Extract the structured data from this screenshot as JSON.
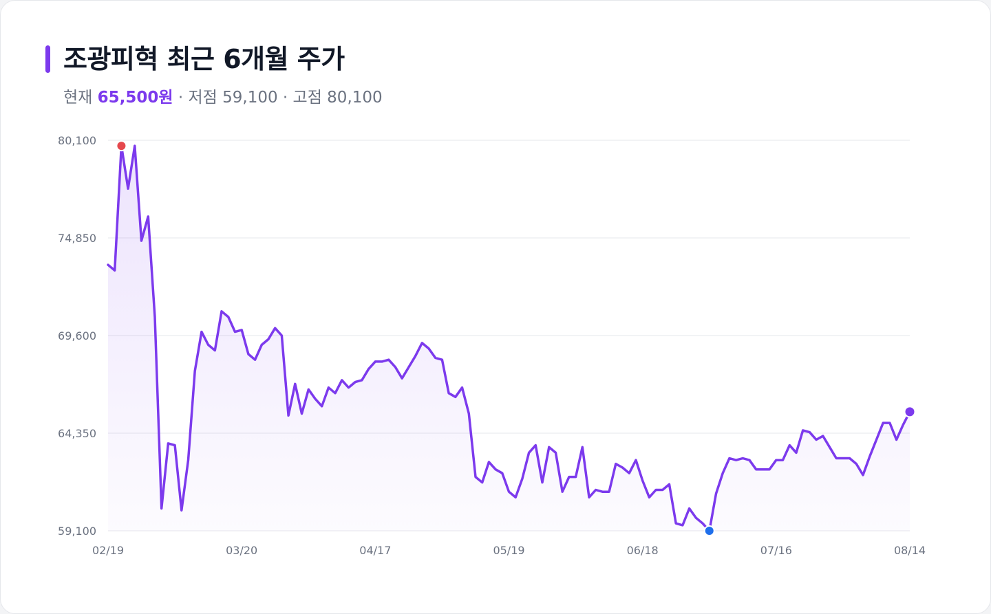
{
  "header": {
    "title": "조광피혁 최근 6개월 주가",
    "current_label": "현재",
    "current_value": "65,500원",
    "low_text": "· 저점 59,100",
    "high_text": "· 고점 80,100"
  },
  "colors": {
    "accent": "#7c3aed",
    "high_marker": "#e5484d",
    "low_marker": "#1f6feb",
    "grid": "#e5e7eb"
  },
  "chart_data": {
    "type": "area",
    "title": "조광피혁 최근 6개월 주가",
    "xlabel": "",
    "ylabel": "",
    "ylim": [
      59100,
      80100
    ],
    "yticks": [
      59100,
      64350,
      69600,
      74850,
      80100
    ],
    "ytick_labels": [
      "59,100",
      "64,350",
      "69,600",
      "74,850",
      "80,100"
    ],
    "xtick_labels": [
      "02/19",
      "03/20",
      "04/17",
      "05/19",
      "06/18",
      "07/16",
      "08/14"
    ],
    "xtick_index": [
      0,
      20,
      40,
      60,
      80,
      100,
      120
    ],
    "grid": true,
    "markers": {
      "high_index": 2,
      "low_index": 90,
      "last_index": 120
    },
    "series": [
      {
        "values": [
          73400,
          73100,
          79800,
          77500,
          79800,
          74700,
          76000,
          70600,
          60300,
          63800,
          63700,
          60200,
          62900,
          67700,
          69800,
          69100,
          68800,
          70900,
          70600,
          69800,
          69900,
          68600,
          68300,
          69100,
          69400,
          70000,
          69600,
          65300,
          67000,
          65400,
          66700,
          66200,
          65800,
          66800,
          66500,
          67200,
          66800,
          67100,
          67200,
          67800,
          68200,
          68200,
          68300,
          67900,
          67300,
          67900,
          68500,
          69200,
          68900,
          68400,
          68300,
          66500,
          66300,
          66800,
          65400,
          62000,
          61700,
          62800,
          62400,
          62200,
          61200,
          60900,
          61900,
          63300,
          63700,
          61700,
          63600,
          63300,
          61200,
          62000,
          62000,
          63600,
          60900,
          61300,
          61200,
          61200,
          62700,
          62500,
          62200,
          62900,
          61800,
          60900,
          61300,
          61300,
          61600,
          59500,
          59400,
          60300,
          59800,
          59500,
          59100,
          61100,
          62200,
          63000,
          62900,
          63000,
          62900,
          62400,
          62400,
          62400,
          62900,
          62900,
          63700,
          63300,
          64500,
          64400,
          64000,
          64200,
          63600,
          63000,
          63000,
          63000,
          62700,
          62100,
          63100,
          64000,
          64900,
          64900,
          64000,
          64800,
          65500
        ]
      }
    ]
  }
}
